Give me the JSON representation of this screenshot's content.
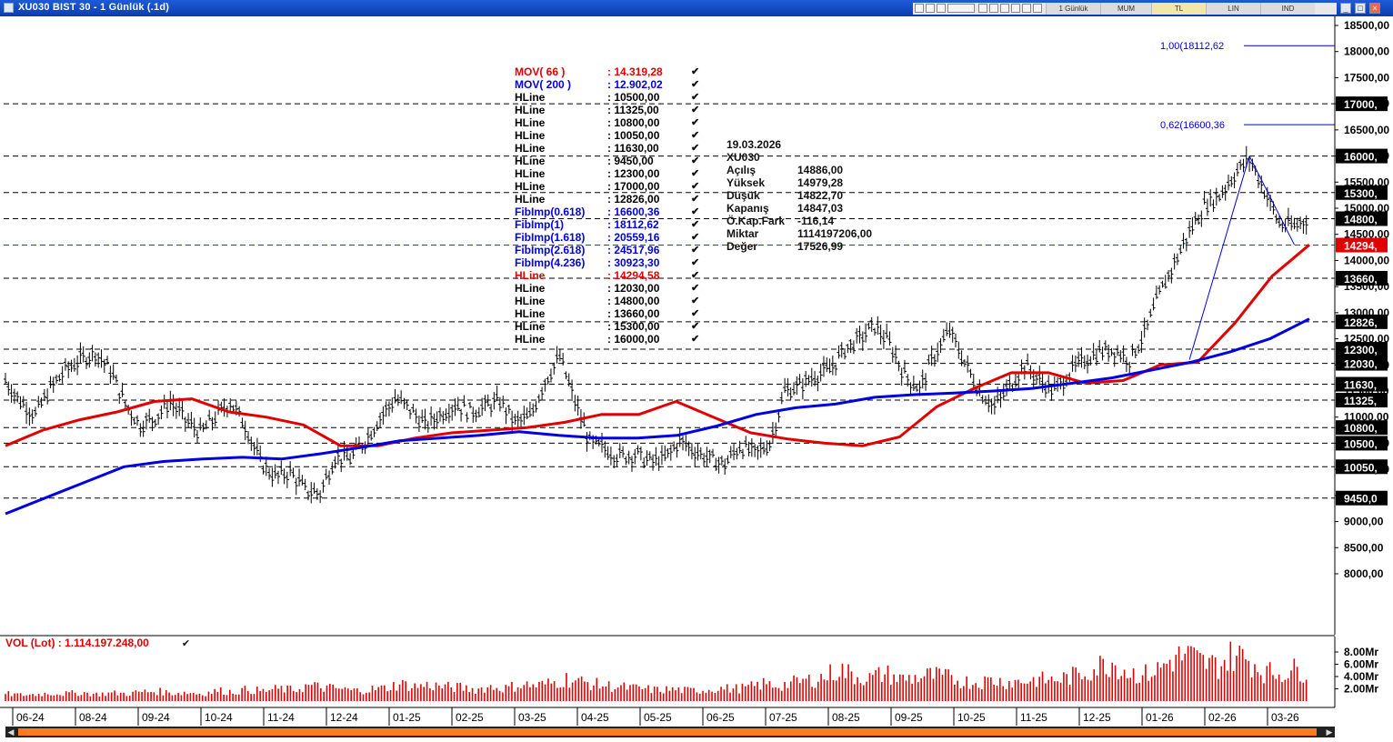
{
  "window": {
    "title": "XU030 BIST 30 - 1 Günlük (.1d)",
    "toolbar_tabs": [
      "1 Günlük",
      "MUM",
      "TL",
      "LIN",
      "IND"
    ],
    "selected_tab": "TL",
    "close_glyph": "×"
  },
  "legend": [
    {
      "name": "MOV( 66 )",
      "value": ": 14.319,28",
      "color": "#e00000"
    },
    {
      "name": "MOV( 200 )",
      "value": ": 12.902,02",
      "color": "#0000e0"
    },
    {
      "name": "HLine",
      "value": ": 10500,00",
      "color": "#000000"
    },
    {
      "name": "HLine",
      "value": ": 11325,00",
      "color": "#000000"
    },
    {
      "name": "HLine",
      "value": ": 10800,00",
      "color": "#000000"
    },
    {
      "name": "HLine",
      "value": ": 10050,00",
      "color": "#000000"
    },
    {
      "name": "HLine",
      "value": ": 11630,00",
      "color": "#000000"
    },
    {
      "name": "HLine",
      "value": ": 9450,00",
      "color": "#000000"
    },
    {
      "name": "HLine",
      "value": ": 12300,00",
      "color": "#000000"
    },
    {
      "name": "HLine",
      "value": ": 17000,00",
      "color": "#000000"
    },
    {
      "name": "HLine",
      "value": ": 12826,00",
      "color": "#000000"
    },
    {
      "name": "FibImp(0.618)",
      "value": ": 16600,36",
      "color": "#0000e0"
    },
    {
      "name": "FibImp(1)",
      "value": ": 18112,62",
      "color": "#0000e0"
    },
    {
      "name": "FibImp(1.618)",
      "value": ": 20559,16",
      "color": "#0000e0"
    },
    {
      "name": "FibImp(2.618)",
      "value": ": 24517,96",
      "color": "#0000e0"
    },
    {
      "name": "FibImp(4.236)",
      "value": ": 30923,30",
      "color": "#0000e0"
    },
    {
      "name": "HLine",
      "value": ": 14294,58",
      "color": "#e00000"
    },
    {
      "name": "HLine",
      "value": ": 12030,00",
      "color": "#000000"
    },
    {
      "name": "HLine",
      "value": ": 14800,00",
      "color": "#000000"
    },
    {
      "name": "HLine",
      "value": ": 13660,00",
      "color": "#000000"
    },
    {
      "name": "HLine",
      "value": ": 15300,00",
      "color": "#000000"
    },
    {
      "name": "HLine",
      "value": ": 16000,00",
      "color": "#000000"
    }
  ],
  "legend_check_glyph": "✔",
  "info": [
    {
      "k": "19.03.2026",
      "v": ""
    },
    {
      "k": "XU030",
      "v": ""
    },
    {
      "k": "Açılış",
      "v": "14886,00"
    },
    {
      "k": "Yüksek",
      "v": "14979,28"
    },
    {
      "k": "Düşük",
      "v": "14822,70"
    },
    {
      "k": "Kapanış",
      "v": "14847,03"
    },
    {
      "k": "Ö.Kap.Fark",
      "v": "-116,14"
    },
    {
      "k": "Miktar",
      "v": "1114197206,00"
    },
    {
      "k": "Değer",
      "v": "17526,99"
    }
  ],
  "volume_label": "VOL (Lot)  : 1.114.197.248,00",
  "chart_data": {
    "type": "line",
    "y_axis_ticks": [
      "18500,00",
      "18000,00",
      "17500,00",
      "17000,00",
      "16500,00",
      "16000,00",
      "15500,00",
      "15000,00",
      "14500,00",
      "14000,00",
      "13500,00",
      "13000,00",
      "12500,00",
      "12000,00",
      "11500,00",
      "11000,00",
      "10500,00",
      "10000,00",
      "9500,00",
      "9000,00",
      "8500,00",
      "8000,00"
    ],
    "ylim": [
      7400,
      18600
    ],
    "x_tick_labels": [
      "06-24",
      "08-24",
      "09-24",
      "10-24",
      "11-24",
      "12-24",
      "01-25",
      "02-25",
      "03-25",
      "04-25",
      "05-25",
      "06-25",
      "07-25",
      "08-25",
      "09-25",
      "10-25",
      "11-25",
      "12-25",
      "01-26",
      "02-26",
      "03-26"
    ],
    "hlines": [
      {
        "value": 17000,
        "label": "17000,",
        "color": "#000000"
      },
      {
        "value": 16000,
        "label": "16000,",
        "color": "#000000"
      },
      {
        "value": 15300,
        "label": "15300,",
        "color": "#000000"
      },
      {
        "value": 14800,
        "label": "14800,",
        "color": "#000000"
      },
      {
        "value": 14294.58,
        "label": "14294,",
        "color": "#e00000"
      },
      {
        "value": 13660,
        "label": "13660,",
        "color": "#000000"
      },
      {
        "value": 12826,
        "label": "12826,",
        "color": "#000000"
      },
      {
        "value": 12300,
        "label": "12300,",
        "color": "#000000"
      },
      {
        "value": 12030,
        "label": "12030,",
        "color": "#000000"
      },
      {
        "value": 11630,
        "label": "11630,",
        "color": "#000000"
      },
      {
        "value": 11325,
        "label": "11325,",
        "color": "#000000"
      },
      {
        "value": 10800,
        "label": "10800,",
        "color": "#000000"
      },
      {
        "value": 10500,
        "label": "10500,",
        "color": "#000000"
      },
      {
        "value": 10050,
        "label": "10050,",
        "color": "#000000"
      },
      {
        "value": 9450,
        "label": "9450,0",
        "color": "#000000"
      }
    ],
    "fib_levels": [
      {
        "value": 18112.62,
        "label": "1,00(18112,62"
      },
      {
        "value": 16600.36,
        "label": "0,62(16600,36"
      }
    ],
    "price_series": [
      [
        "06-24",
        11700
      ],
      [
        "06-24",
        11300
      ],
      [
        "06-24",
        11050
      ],
      [
        "06-24",
        11550
      ],
      [
        "07-24",
        11900
      ],
      [
        "07-24",
        12100
      ],
      [
        "07-24",
        12250
      ],
      [
        "07-24",
        11900
      ],
      [
        "08-24",
        11250
      ],
      [
        "08-24",
        10850
      ],
      [
        "08-24",
        11000
      ],
      [
        "08-24",
        11300
      ],
      [
        "09-24",
        10950
      ],
      [
        "09-24",
        10700
      ],
      [
        "09-24",
        11000
      ],
      [
        "09-24",
        11300
      ],
      [
        "10-24",
        10850
      ],
      [
        "10-24",
        10150
      ],
      [
        "10-24",
        9850
      ],
      [
        "10-24",
        9950
      ],
      [
        "11-24",
        9600
      ],
      [
        "11-24",
        9550
      ],
      [
        "11-24",
        10250
      ],
      [
        "11-24",
        10200
      ],
      [
        "12-24",
        10550
      ],
      [
        "12-24",
        11000
      ],
      [
        "12-24",
        11350
      ],
      [
        "12-24",
        11150
      ],
      [
        "01-25",
        10850
      ],
      [
        "01-25",
        11050
      ],
      [
        "01-25",
        11250
      ],
      [
        "01-25",
        11100
      ],
      [
        "02-25",
        11200
      ],
      [
        "02-25",
        11300
      ],
      [
        "02-25",
        10900
      ],
      [
        "02-25",
        11000
      ],
      [
        "03-25",
        11700
      ],
      [
        "03-25",
        12150
      ],
      [
        "03-25",
        11300
      ],
      [
        "03-25",
        10500
      ],
      [
        "04-25",
        10400
      ],
      [
        "04-25",
        10250
      ],
      [
        "04-25",
        10300
      ],
      [
        "04-25",
        10150
      ],
      [
        "05-25",
        10200
      ],
      [
        "05-25",
        10550
      ],
      [
        "05-25",
        10350
      ],
      [
        "05-25",
        10200
      ],
      [
        "06-25",
        10100
      ],
      [
        "06-25",
        10450
      ],
      [
        "06-25",
        10300
      ],
      [
        "06-25",
        10500
      ],
      [
        "07-25",
        11500
      ],
      [
        "07-25",
        11600
      ],
      [
        "07-25",
        11800
      ],
      [
        "07-25",
        11900
      ],
      [
        "08-25",
        12300
      ],
      [
        "08-25",
        12500
      ],
      [
        "08-25",
        12750
      ],
      [
        "08-25",
        12400
      ],
      [
        "09-25",
        11800
      ],
      [
        "09-25",
        11550
      ],
      [
        "09-25",
        12200
      ],
      [
        "09-25",
        12650
      ],
      [
        "10-25",
        12050
      ],
      [
        "10-25",
        11500
      ],
      [
        "10-25",
        11200
      ],
      [
        "10-25",
        11600
      ],
      [
        "11-25",
        12000
      ],
      [
        "11-25",
        11700
      ],
      [
        "11-25",
        11500
      ],
      [
        "11-25",
        11850
      ],
      [
        "12-25",
        12100
      ],
      [
        "12-25",
        12250
      ],
      [
        "12-25",
        12300
      ],
      [
        "12-25",
        12100
      ],
      [
        "01-26",
        12600
      ],
      [
        "01-26",
        13350
      ],
      [
        "01-26",
        13950
      ],
      [
        "01-26",
        14550
      ],
      [
        "02-26",
        15050
      ],
      [
        "02-26",
        15250
      ],
      [
        "02-26",
        15650
      ],
      [
        "02-26",
        15950
      ],
      [
        "03-26",
        15350
      ],
      [
        "03-26",
        14700
      ],
      [
        "03-26",
        14650
      ],
      [
        "03-26",
        14850
      ]
    ],
    "series": [
      {
        "name": "MOV( 66 )",
        "color": "#e00000",
        "values": [
          10450,
          10750,
          10950,
          11100,
          11300,
          11350,
          11100,
          11000,
          10850,
          10450,
          10450,
          10600,
          10700,
          10750,
          10800,
          10900,
          11050,
          11050,
          11300,
          11000,
          10700,
          10580,
          10500,
          10450,
          10620,
          11200,
          11550,
          11850,
          11850,
          11650,
          11700,
          12000,
          12050,
          12800,
          13700,
          14300
        ]
      },
      {
        "name": "MOV( 200 )",
        "color": "#0000e0",
        "values": [
          9150,
          9450,
          9750,
          10050,
          10150,
          10200,
          10230,
          10200,
          10300,
          10420,
          10550,
          10600,
          10650,
          10720,
          10650,
          10600,
          10600,
          10650,
          10830,
          11050,
          11180,
          11250,
          11380,
          11430,
          11460,
          11500,
          11550,
          11650,
          11750,
          11900,
          12050,
          12250,
          12500,
          12880
        ]
      }
    ],
    "volume": {
      "label": "VOL (Lot)",
      "y_ticks": [
        "8.00Mr",
        "6.00Mr",
        "4.00Mr",
        "2.00Mr"
      ],
      "ylim": [
        0,
        9.6
      ],
      "values_mr": [
        1.2,
        1.0,
        1.1,
        1.3,
        1.2,
        1.4,
        1.1,
        1.3,
        1.2,
        1.5,
        1.6,
        1.3,
        1.4,
        1.2,
        1.7,
        1.5,
        1.9,
        1.6,
        2.0,
        1.8,
        2.5,
        2.2,
        2.0,
        1.7,
        1.9,
        2.1,
        2.8,
        2.4,
        2.6,
        2.3,
        2.2,
        1.9,
        2.3,
        2.1,
        2.7,
        2.5,
        2.9,
        3.6,
        3.1,
        2.7,
        2.4,
        2.2,
        2.0,
        1.8,
        1.9,
        1.7,
        1.8,
        2.1,
        2.0,
        2.2,
        2.8,
        2.5,
        3.0,
        3.4,
        3.9,
        5.2,
        4.1,
        3.7,
        4.5,
        3.6,
        3.8,
        4.2,
        3.9,
        3.3,
        3.0,
        3.4,
        3.1,
        3.2,
        3.5,
        3.4,
        3.8,
        4.5,
        5.6,
        6.4,
        4.8,
        4.2,
        5.1,
        6.9,
        7.4,
        6.2,
        5.8,
        7.6,
        6.8,
        4.8,
        4.5,
        5.1,
        4.9
      ]
    }
  }
}
